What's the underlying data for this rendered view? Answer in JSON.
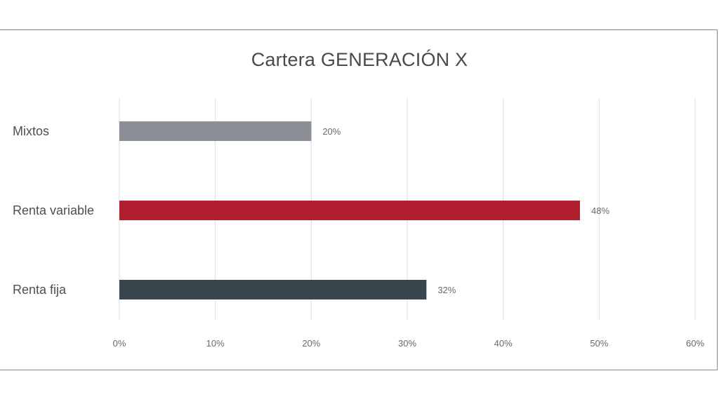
{
  "chart_data": {
    "type": "bar",
    "orientation": "horizontal",
    "title": "Cartera GENERACIÓN X",
    "categories": [
      "Mixtos",
      "Renta variable",
      "Renta fija"
    ],
    "values": [
      20,
      48,
      32
    ],
    "value_labels": [
      "20%",
      "48%",
      "32%"
    ],
    "colors": [
      "#8b8e95",
      "#b01e2f",
      "#3a464e"
    ],
    "xlim": [
      0,
      60
    ],
    "xticks": [
      0,
      10,
      20,
      30,
      40,
      50,
      60
    ],
    "xtick_labels": [
      "0%",
      "10%",
      "20%",
      "30%",
      "40%",
      "50%",
      "60%"
    ],
    "grid": "vertical",
    "legend": "none",
    "xlabel": "",
    "ylabel": ""
  }
}
